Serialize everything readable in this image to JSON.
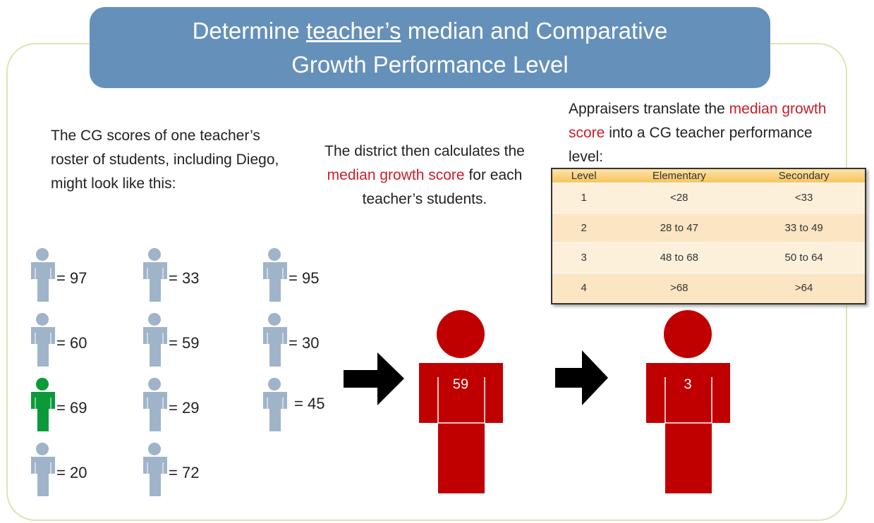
{
  "title": {
    "before": "Determine",
    "underlined": "teacher’s",
    "after": "median and Comparative",
    "line2": "Growth Performance Level"
  },
  "roster_text": "The CG scores of one teacher’s roster of students, including Diego, might look like this:",
  "students": [
    {
      "label": "= 97",
      "color": "#9fb4c9"
    },
    {
      "label": "= 60",
      "color": "#9fb4c9"
    },
    {
      "label": "= 69",
      "color": "#0a9a3a"
    },
    {
      "label": "= 20",
      "color": "#9fb4c9"
    },
    {
      "label": "= 33",
      "color": "#9fb4c9"
    },
    {
      "label": "= 59",
      "color": "#9fb4c9"
    },
    {
      "label": "= 29",
      "color": "#9fb4c9"
    },
    {
      "label": "= 72",
      "color": "#9fb4c9"
    },
    {
      "label": "= 95",
      "color": "#9fb4c9"
    },
    {
      "label": "= 30",
      "color": "#9fb4c9"
    },
    {
      "label": "= 45",
      "color": "#9fb4c9"
    }
  ],
  "district_text": {
    "before": "The district then calculates the",
    "highlight": "median growth score",
    "after": "for each teacher’s students."
  },
  "median_figure": {
    "label": "59",
    "color": "#c00000"
  },
  "appraiser_text": {
    "before": "Appraisers translate the",
    "highlight": "median growth score",
    "after": "into a CG teacher performance level:"
  },
  "table": {
    "header": [
      "Level",
      "Elementary",
      "Secondary"
    ],
    "rows": [
      [
        "1",
        "<28",
        "<33"
      ],
      [
        "2",
        "28 to 47",
        "33 to 49"
      ],
      [
        "3",
        "48 to 68",
        "50 to 64"
      ],
      [
        "4",
        ">68",
        ">64"
      ]
    ]
  },
  "result_figure": {
    "label": "3",
    "color": "#c00000"
  }
}
